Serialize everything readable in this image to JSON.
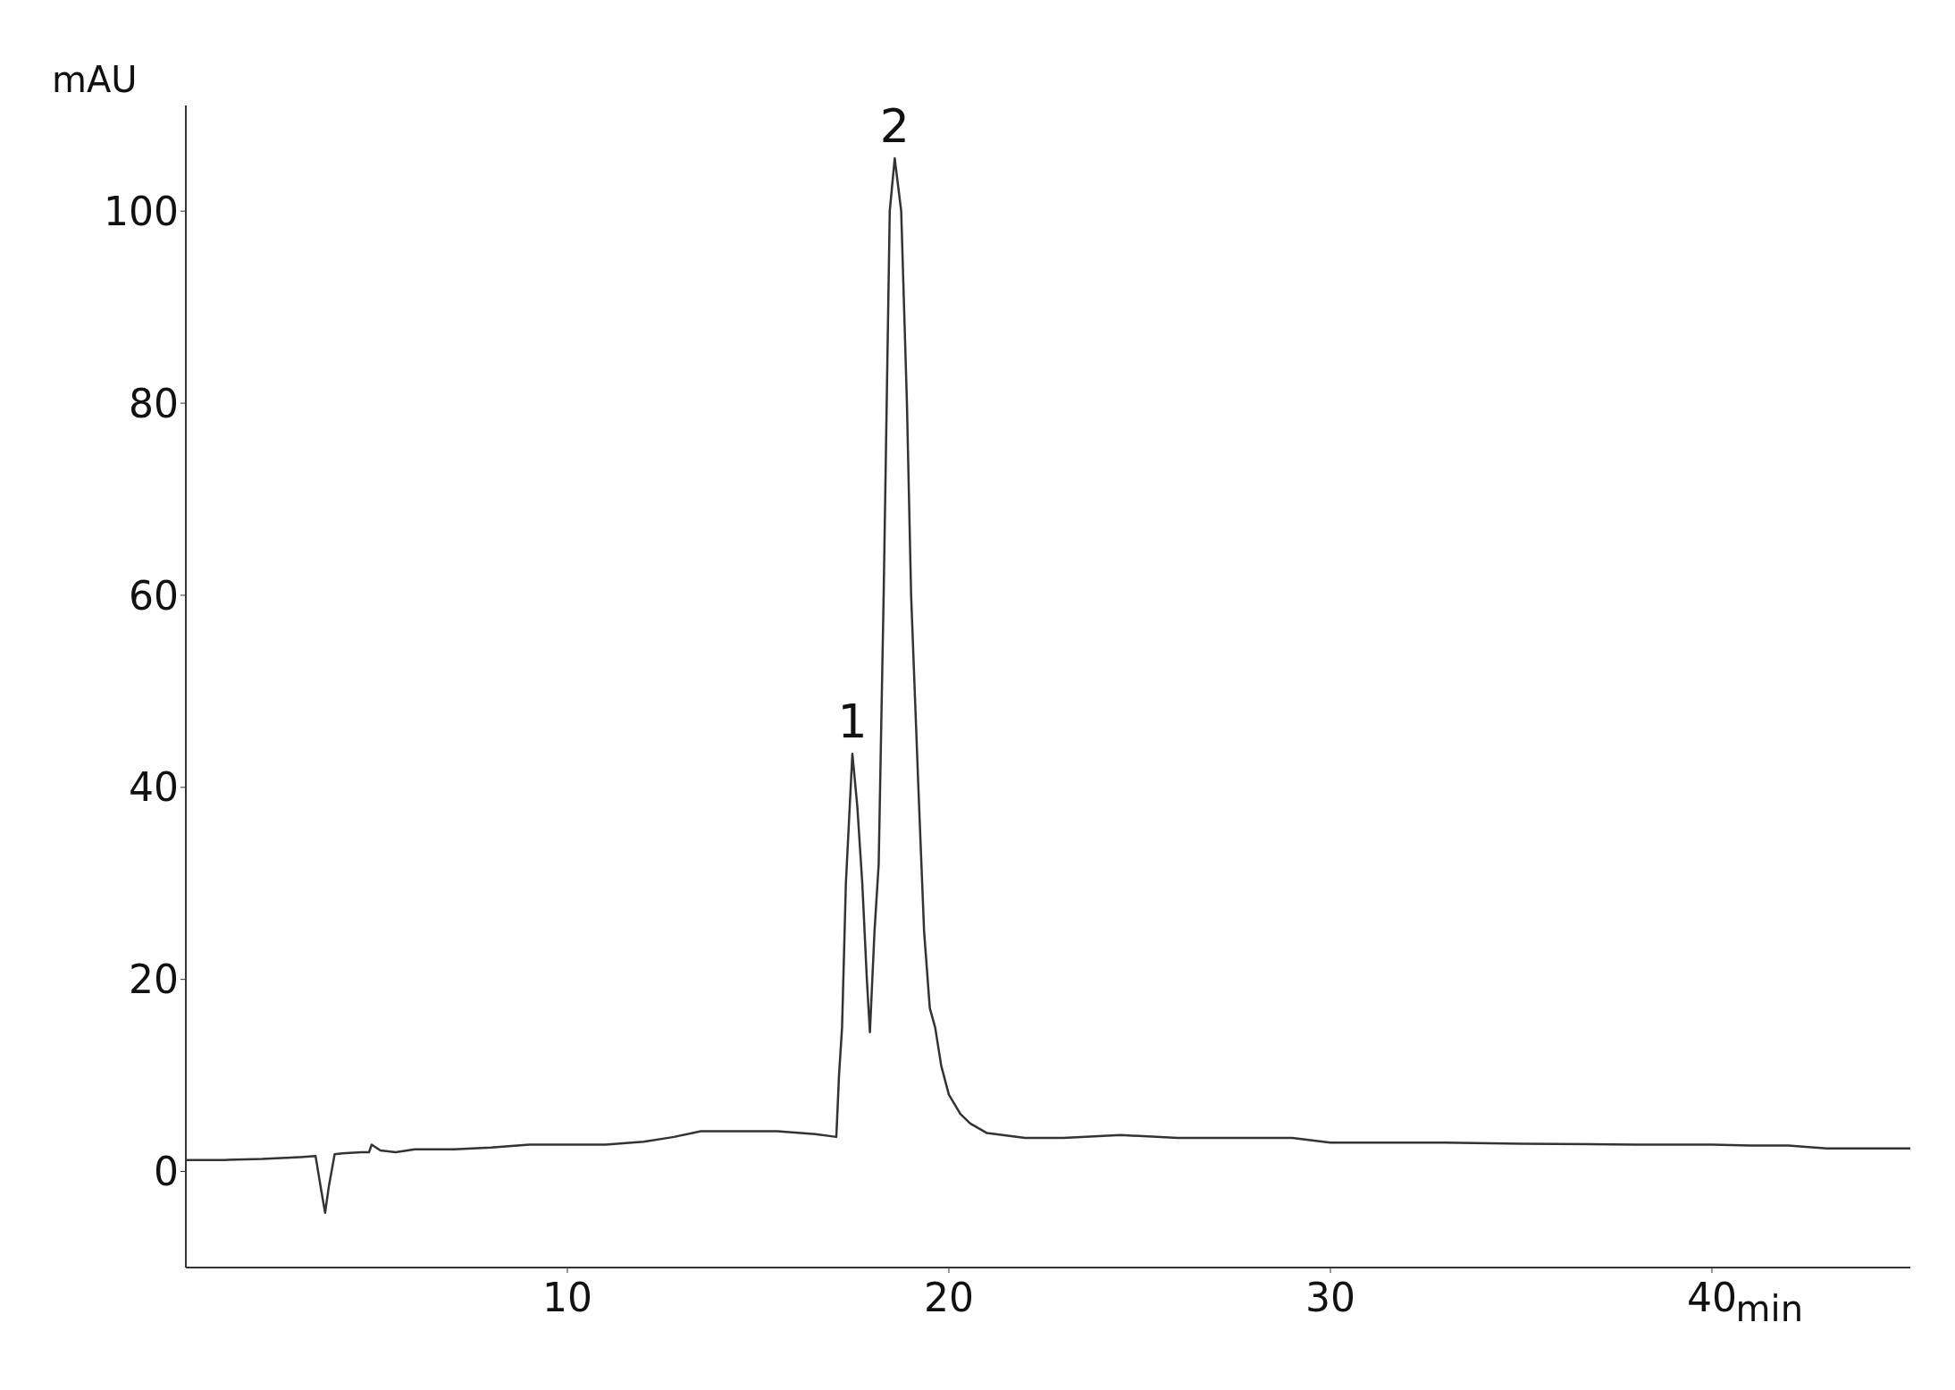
{
  "chart_data": {
    "type": "line",
    "xlabel": "min",
    "ylabel": "mAU",
    "xlim": [
      0,
      45.2
    ],
    "ylim": [
      -10,
      111
    ],
    "xticks": [
      10,
      20,
      30,
      40
    ],
    "yticks": [
      0,
      20,
      40,
      60,
      80,
      100
    ],
    "marker": "none",
    "line_style": "solid",
    "annotations": [
      {
        "text": "1",
        "x": 17.47,
        "y": 43.5
      },
      {
        "text": "2",
        "x": 18.58,
        "y": 105.5
      }
    ],
    "series": [
      {
        "color": "#333333",
        "x": [
          0,
          1,
          2,
          3,
          3.4,
          3.55,
          3.65,
          3.75,
          3.9,
          4.1,
          4.6,
          4.8,
          4.87,
          5.1,
          5.5,
          6,
          7,
          8,
          9,
          10,
          11,
          12,
          12.8,
          13.5,
          14.5,
          15.5,
          16.5,
          17.05,
          17.12,
          17.2,
          17.3,
          17.47,
          17.6,
          17.73,
          17.85,
          17.93,
          18.05,
          18.16,
          18.29,
          18.45,
          18.58,
          18.75,
          18.9,
          19.01,
          19.2,
          19.35,
          19.5,
          19.64,
          19.8,
          20,
          20.3,
          20.56,
          21,
          22,
          23,
          24.5,
          26,
          29,
          30,
          33,
          35,
          38,
          40,
          41,
          42,
          43,
          45.2
        ],
        "values": [
          1.2,
          1.2,
          1.3,
          1.5,
          1.6,
          -2,
          -4.3,
          -1.5,
          1.8,
          1.9,
          2,
          2,
          2.8,
          2.2,
          2,
          2.3,
          2.3,
          2.5,
          2.8,
          2.8,
          2.8,
          3.1,
          3.6,
          4.2,
          4.2,
          4.2,
          3.9,
          3.6,
          10,
          15,
          30,
          43.5,
          38,
          30,
          20,
          14.5,
          25,
          32,
          60,
          100,
          105.5,
          100,
          80,
          60,
          40,
          25,
          17,
          15,
          11,
          8,
          6,
          5,
          4,
          3.5,
          3.5,
          3.8,
          3.5,
          3.5,
          3,
          3,
          2.9,
          2.8,
          2.8,
          2.7,
          2.7,
          2.4,
          2.4
        ]
      }
    ]
  }
}
